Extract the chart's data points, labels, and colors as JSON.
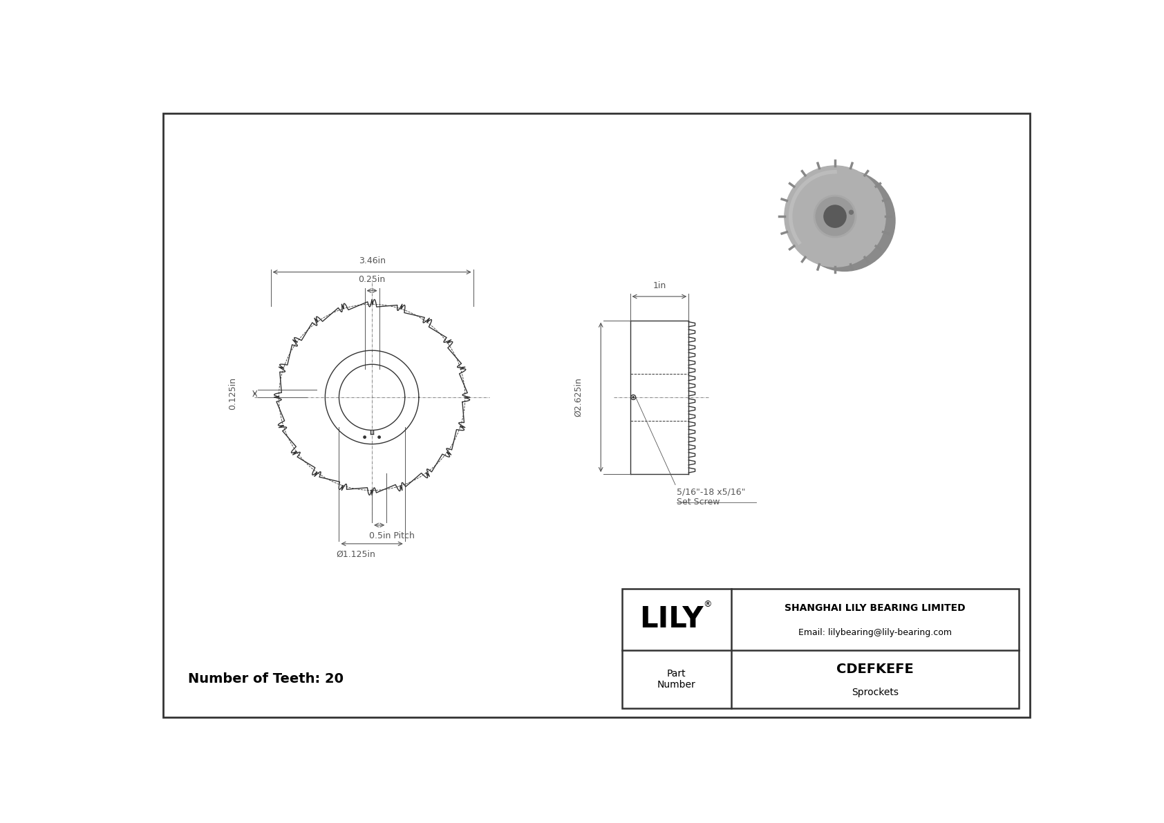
{
  "bg_color": "#ffffff",
  "line_color": "#333333",
  "dim_color": "#555555",
  "title": "CDEFKEFE",
  "subtitle": "Sprockets",
  "company": "SHANGHAI LILY BEARING LIMITED",
  "email": "Email: lilybearing@lily-bearing.com",
  "part_label": "Part\nNumber",
  "num_teeth": 20,
  "num_teeth_label": "Number of Teeth: 20",
  "dim_346": "3.46in",
  "dim_025": "0.25in",
  "dim_0125": "0.125in",
  "dim_pitch": "0.5in Pitch",
  "dim_bore": "Ø1.125in",
  "dim_width": "1in",
  "dim_od": "Ø2.625in",
  "dim_setscrew": "5/16\"-18 x5/16\"\nSet Screw",
  "scale": 1.1
}
